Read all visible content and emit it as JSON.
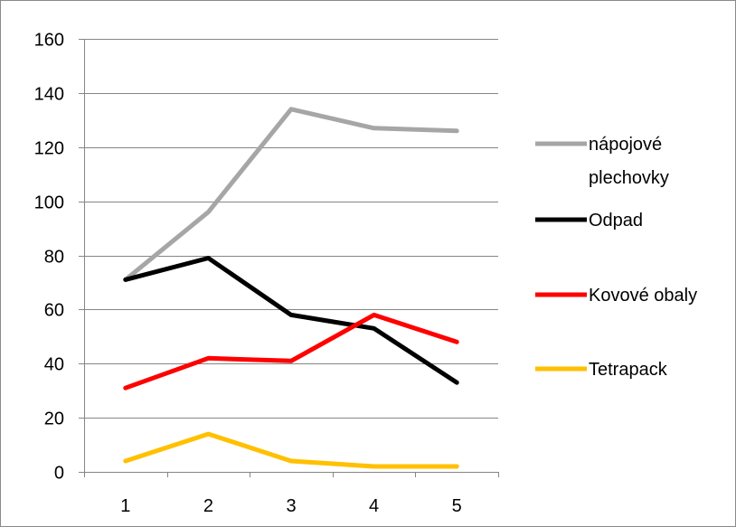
{
  "chart_data": {
    "type": "line",
    "title": "",
    "xlabel": "",
    "ylabel": "",
    "categories": [
      "1",
      "2",
      "3",
      "4",
      "5"
    ],
    "ylim": [
      0,
      160
    ],
    "yticks": [
      0,
      20,
      40,
      60,
      80,
      100,
      120,
      140,
      160
    ],
    "grid": true,
    "legend_position": "right",
    "series": [
      {
        "name": "nápojové plechovky",
        "legend_lines": [
          "nápojové",
          "plechovky"
        ],
        "color": "#a6a6a6",
        "values": [
          71,
          96,
          134,
          127,
          126
        ]
      },
      {
        "name": "Odpad",
        "legend_lines": [
          "Odpad"
        ],
        "color": "#000000",
        "values": [
          71,
          79,
          58,
          53,
          33
        ]
      },
      {
        "name": "Kovové obaly",
        "legend_lines": [
          "Kovové obaly"
        ],
        "color": "#ff0000",
        "values": [
          31,
          42,
          41,
          58,
          48
        ]
      },
      {
        "name": "Tetrapack",
        "legend_lines": [
          "Tetrapack"
        ],
        "color": "#ffc000",
        "values": [
          4,
          14,
          4,
          2,
          2
        ]
      }
    ]
  }
}
